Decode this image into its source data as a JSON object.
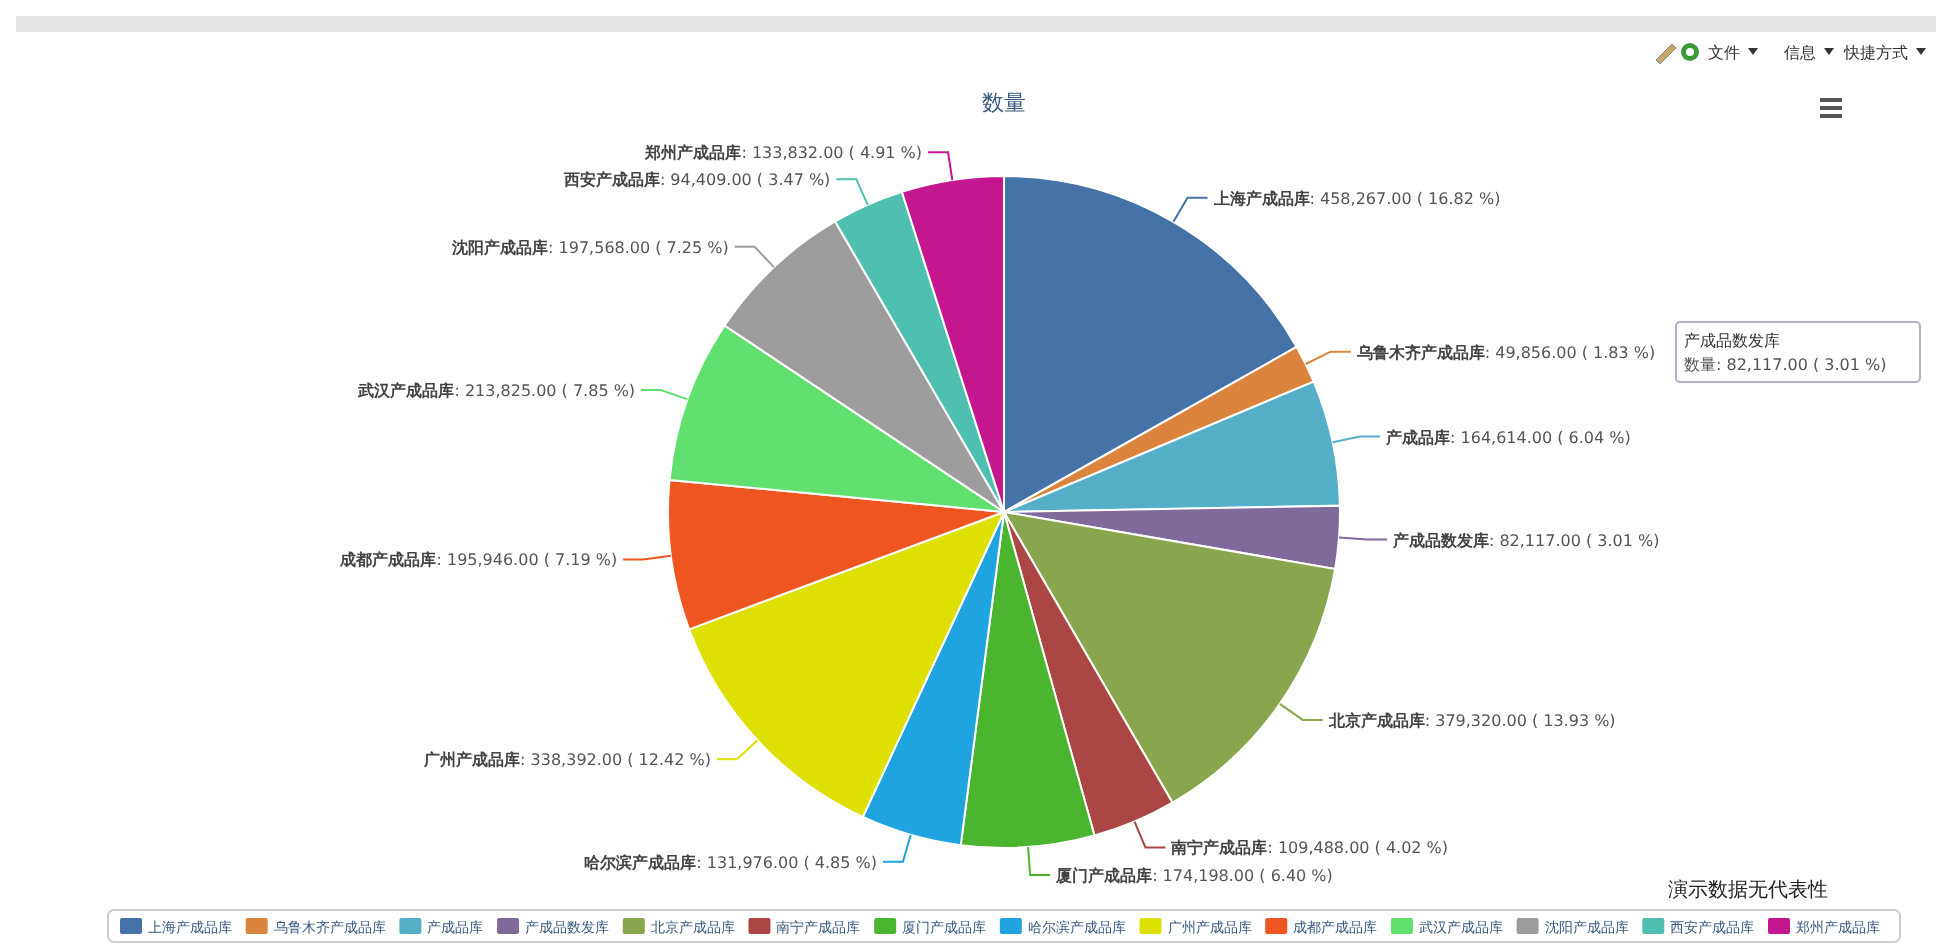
{
  "chart_data": {
    "type": "pie",
    "title": "数量",
    "categories": [
      "上海产成品库",
      "乌鲁木齐产成品库",
      "产成品库",
      "产成品数发库",
      "北京产成品库",
      "南宁产成品库",
      "厦门产成品库",
      "哈尔滨产成品库",
      "广州产成品库",
      "成都产成品库",
      "武汉产成品库",
      "沈阳产成品库",
      "西安产成品库",
      "郑州产成品库"
    ],
    "values": [
      458267,
      49856,
      164614,
      82117,
      379320,
      109488,
      174198,
      131976,
      338392,
      195946,
      213825,
      197568,
      94409,
      133832
    ],
    "value_labels": [
      ": 458,267.00 ( 16.82 %)",
      ": 49,856.00 ( 1.83 %)",
      ": 164,614.00 ( 6.04 %)",
      ": 82,117.00 ( 3.01 %)",
      ": 379,320.00 ( 13.93 %)",
      ": 109,488.00 ( 4.02 %)",
      ": 174,198.00 ( 6.40 %)",
      ": 131,976.00 ( 4.85 %)",
      ": 338,392.00 ( 12.42 %)",
      ": 195,946.00 ( 7.19 %)",
      ": 213,825.00 ( 7.85 %)",
      ": 197,568.00 ( 7.25 %)",
      ": 94,409.00 ( 3.47 %)",
      ": 133,832.00 ( 4.91 %)"
    ],
    "colors": [
      "#4572a7",
      "#db843d",
      "#56afc9",
      "#80699b",
      "#89a54e",
      "#aa4643",
      "#4cb52f",
      "#1fa4e0",
      "#dde000",
      "#ee5520",
      "#62e06f",
      "#9d9d9d",
      "#4fc0b0",
      "#c4168f"
    ],
    "legend": "bottom",
    "annotations": [
      "文件",
      "信息",
      "快捷方式",
      "产成品数发库",
      "数量: 82,117.00 ( 3.01 %)",
      "演示数据无代表性"
    ]
  }
}
